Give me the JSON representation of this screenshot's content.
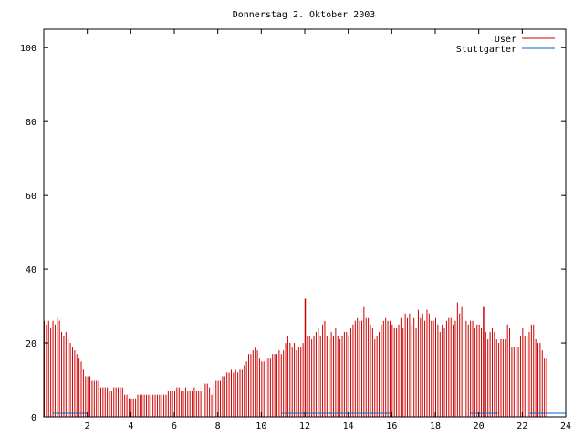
{
  "chart_data": {
    "type": "bar",
    "title": "Donnerstag 2. Oktober 2003",
    "xlabel": "",
    "ylabel": "",
    "xlim": [
      0,
      24
    ],
    "ylim": [
      0,
      105
    ],
    "x_ticks": [
      2,
      4,
      6,
      8,
      10,
      12,
      14,
      16,
      18,
      20,
      22,
      24
    ],
    "y_ticks": [
      0,
      20,
      40,
      60,
      80,
      100
    ],
    "grid": false,
    "legend": "top-right",
    "series": [
      {
        "name": "User",
        "color": "#cc0000",
        "style": "impulses",
        "interval_hours": 0.1,
        "values": [
          26,
          25,
          26,
          24,
          26,
          25,
          27,
          26,
          23,
          22,
          23,
          21,
          20,
          19,
          18,
          17,
          16,
          15,
          13,
          11,
          11,
          11,
          10,
          10,
          10,
          10,
          8,
          8,
          8,
          8,
          7,
          7,
          8,
          8,
          8,
          8,
          8,
          6,
          6,
          5,
          5,
          5,
          5,
          6,
          6,
          6,
          6,
          6,
          6,
          6,
          6,
          6,
          6,
          6,
          6,
          6,
          6,
          7,
          7,
          7,
          7,
          8,
          8,
          7,
          7,
          8,
          7,
          7,
          7,
          8,
          7,
          7,
          7,
          8,
          9,
          9,
          8,
          6,
          9,
          10,
          10,
          10,
          11,
          11,
          12,
          12,
          13,
          12,
          13,
          12,
          13,
          13,
          14,
          15,
          17,
          17,
          18,
          19,
          18,
          16,
          15,
          15,
          16,
          16,
          16,
          17,
          17,
          17,
          18,
          17,
          18,
          20,
          22,
          20,
          19,
          20,
          18,
          19,
          19,
          20,
          21,
          22,
          22,
          21,
          22,
          23,
          24,
          22,
          25,
          26,
          22,
          21,
          23,
          22,
          24,
          22,
          21,
          22,
          23,
          23,
          22,
          24,
          25,
          26,
          27,
          26,
          26,
          30,
          27,
          27,
          25,
          24,
          21,
          22,
          23,
          25,
          26,
          27,
          26,
          26,
          25,
          24,
          24,
          25,
          27,
          24,
          28,
          27,
          28,
          25,
          27,
          24,
          29,
          27,
          28,
          26,
          29,
          28,
          26,
          26,
          27,
          25,
          23,
          25,
          24,
          26,
          27,
          27,
          25,
          26,
          31,
          28,
          30,
          27,
          26,
          25,
          26,
          26,
          24,
          25,
          25,
          24,
          24,
          23,
          21,
          23,
          24,
          23,
          21,
          20,
          21,
          21,
          21,
          25,
          24,
          19,
          19,
          19,
          19,
          22,
          24,
          22,
          22,
          23,
          25,
          25,
          21,
          20,
          20,
          18,
          16,
          16
        ],
        "spikes": [
          {
            "x": 12.0,
            "y": 32
          },
          {
            "x": 20.2,
            "y": 30
          }
        ]
      },
      {
        "name": "Stuttgarter",
        "color": "#0066cc",
        "style": "impulses",
        "interval_hours": 0.1,
        "segments": [
          {
            "from": 0.4,
            "to": 2.0,
            "value": 1
          },
          {
            "from": 10.9,
            "to": 12.4,
            "value": 1
          },
          {
            "from": 12.4,
            "to": 15.9,
            "value": 1
          },
          {
            "from": 19.6,
            "to": 20.9,
            "value": 1
          },
          {
            "from": 22.3,
            "to": 24.0,
            "value": 1
          }
        ]
      }
    ]
  }
}
